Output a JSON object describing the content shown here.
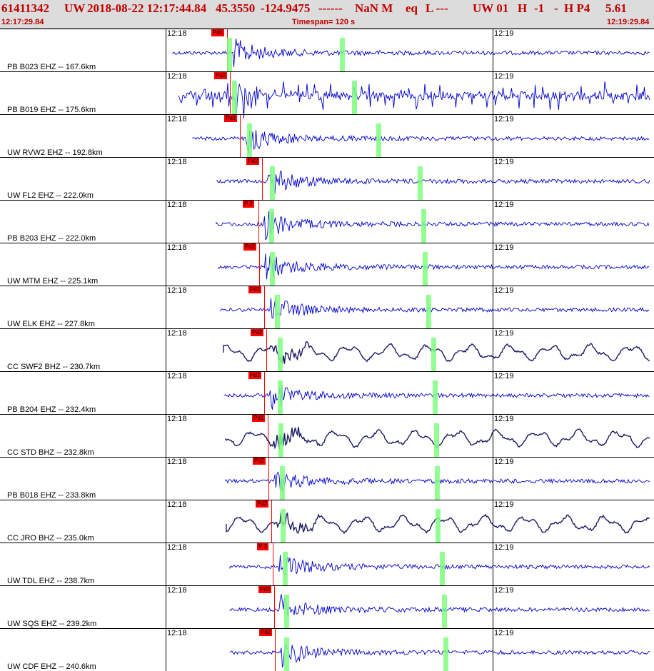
{
  "header": {
    "event_id": "61411342",
    "network": "UW",
    "datetime": "2018-08-22 12:17:44.84",
    "lat": "45.3550",
    "lon": "-124.9475",
    "dashes": "------",
    "mag_type": "NaN M",
    "etype": "eq",
    "gtype": "L ---",
    "source": "UW 01",
    "h_field": "H",
    "n1": "-1",
    "dash2": "-",
    "h_p": "H P4",
    "value": "5.61",
    "more": "---",
    "start_time": "12:17:29.84",
    "timespan": "Timespan= 120 s",
    "end_time": "12:19:29.84"
  },
  "tick_labels": [
    "12:18",
    "12:19"
  ],
  "colors": {
    "trace_blue": "#0000cc",
    "trace_dark": "#1a1a66",
    "pick_red": "#ff0000",
    "header_red": "#c00000",
    "green_band": "#80ff80"
  },
  "traces": [
    {
      "station": "PB B023 EHZ -- 167.6km",
      "pick": "Pd1",
      "style": "blue"
    },
    {
      "station": "PB B019 EHZ -- 175.6km",
      "pick": "Pd2",
      "style": "spiky"
    },
    {
      "station": "UW RVW2 EHZ -- 192.8km",
      "pick": "Pd1",
      "style": "blue"
    },
    {
      "station": "UW FL2 EHZ -- 222.0km",
      "pick": "Pd2",
      "style": "blue"
    },
    {
      "station": "PB B203 EHZ -- 222.0km",
      "pick": "P 2",
      "style": "blue"
    },
    {
      "station": "UW MTM EHZ -- 225.1km",
      "pick": "Pd2",
      "style": "blue"
    },
    {
      "station": "UW ELK EHZ -- 227.8km",
      "pick": "Pd2",
      "style": "blue"
    },
    {
      "station": "CC SWF2 BHZ -- 230.7km",
      "pick": "Pd2",
      "style": "dark"
    },
    {
      "station": "PB B204 EHZ -- 232.4km",
      "pick": "Pd2",
      "style": "blue"
    },
    {
      "station": "CC STD BHZ -- 232.8km",
      "pick": "Pd1",
      "style": "dark"
    },
    {
      "station": "PB B018 EHZ -- 233.8km",
      "pick": "Pd2",
      "style": "blue"
    },
    {
      "station": "CC JRO BHZ -- 235.0km",
      "pick": "Pd2",
      "style": "dark"
    },
    {
      "station": "UW TDL EHZ -- 238.7km",
      "pick": "P 3",
      "style": "blue"
    },
    {
      "station": "UW SQS EHZ -- 239.2km",
      "pick": "Pd2",
      "style": "blue"
    },
    {
      "station": "UW CDF EHZ -- 240.6km",
      "pick": "Pd2",
      "style": "blue"
    }
  ]
}
